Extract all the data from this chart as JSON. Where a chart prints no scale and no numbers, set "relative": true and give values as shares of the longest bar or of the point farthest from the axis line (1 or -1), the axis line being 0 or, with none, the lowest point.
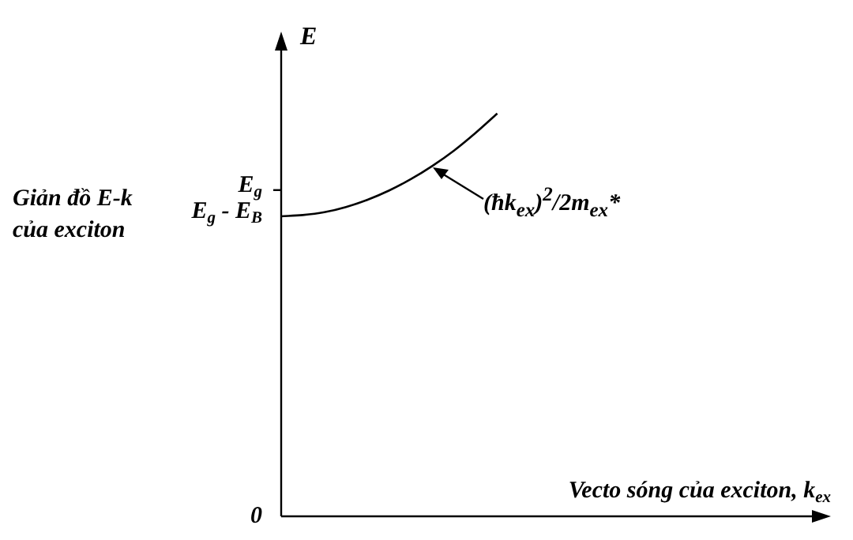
{
  "chart_data": {
    "type": "line",
    "relative": true,
    "title": "Giản đồ E-k của exciton",
    "ylabel": "E",
    "xlabel": "Vecto sóng của exciton, k$_{ex}$",
    "categories": [
      null,
      null,
      null,
      null,
      null,
      null,
      null,
      null,
      null,
      null,
      null,
      null,
      null,
      null,
      null,
      null,
      null,
      null,
      null,
      null,
      null,
      null,
      null,
      null,
      null,
      null
    ],
    "values": [
      0.745,
      0.748,
      0.755,
      0.768,
      0.786,
      0.809,
      0.837,
      0.87,
      0.908,
      0.952,
      1,
      null,
      null,
      null,
      null,
      null,
      null,
      null,
      null,
      null,
      null,
      null,
      null,
      null,
      null,
      null
    ],
    "color": "#000000",
    "marker": "none",
    "legend": false,
    "annotations": [
      "E$_{g}$",
      "E$_{g}$ - E$_{B}$",
      "0",
      "(ħk$_{ex}$)$^{2}$/2m$_{ex}$*"
    ]
  }
}
